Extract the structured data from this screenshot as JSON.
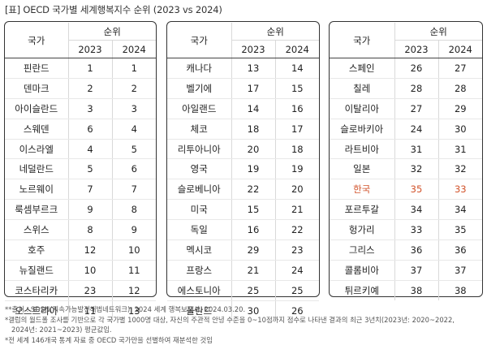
{
  "title": "[표] OECD 국가별 세계행복지수 순위 (2023 vs 2024)",
  "headers": {
    "country": "국가",
    "rank": "순위",
    "year1": "2023",
    "year2": "2024"
  },
  "tables": [
    [
      {
        "country": "핀란드",
        "r2023": "1",
        "r2024": "1"
      },
      {
        "country": "덴마크",
        "r2023": "2",
        "r2024": "2"
      },
      {
        "country": "아이슬란드",
        "r2023": "3",
        "r2024": "3"
      },
      {
        "country": "스웨덴",
        "r2023": "6",
        "r2024": "4"
      },
      {
        "country": "이스라엘",
        "r2023": "4",
        "r2024": "5"
      },
      {
        "country": "네덜란드",
        "r2023": "5",
        "r2024": "6"
      },
      {
        "country": "노르웨이",
        "r2023": "7",
        "r2024": "7"
      },
      {
        "country": "룩셈부르크",
        "r2023": "9",
        "r2024": "8"
      },
      {
        "country": "스위스",
        "r2023": "8",
        "r2024": "9"
      },
      {
        "country": "호주",
        "r2023": "12",
        "r2024": "10"
      },
      {
        "country": "뉴질랜드",
        "r2023": "10",
        "r2024": "11"
      },
      {
        "country": "코스타리카",
        "r2023": "23",
        "r2024": "12"
      },
      {
        "country": "오스트리아",
        "r2023": "11",
        "r2024": "13"
      }
    ],
    [
      {
        "country": "캐나다",
        "r2023": "13",
        "r2024": "14"
      },
      {
        "country": "벨기에",
        "r2023": "17",
        "r2024": "15"
      },
      {
        "country": "아일랜드",
        "r2023": "14",
        "r2024": "16"
      },
      {
        "country": "체코",
        "r2023": "18",
        "r2024": "17"
      },
      {
        "country": "리투아니아",
        "r2023": "20",
        "r2024": "18"
      },
      {
        "country": "영국",
        "r2023": "19",
        "r2024": "19"
      },
      {
        "country": "슬로베니아",
        "r2023": "22",
        "r2024": "20"
      },
      {
        "country": "미국",
        "r2023": "15",
        "r2024": "21"
      },
      {
        "country": "독일",
        "r2023": "16",
        "r2024": "22"
      },
      {
        "country": "멕시코",
        "r2023": "29",
        "r2024": "23"
      },
      {
        "country": "프랑스",
        "r2023": "21",
        "r2024": "24"
      },
      {
        "country": "에스토니아",
        "r2023": "25",
        "r2024": "25"
      },
      {
        "country": "폴란드",
        "r2023": "30",
        "r2024": "26"
      }
    ],
    [
      {
        "country": "스페인",
        "r2023": "26",
        "r2024": "27"
      },
      {
        "country": "칠레",
        "r2023": "28",
        "r2024": "28"
      },
      {
        "country": "이탈리아",
        "r2023": "27",
        "r2024": "29"
      },
      {
        "country": "슬로바키아",
        "r2023": "24",
        "r2024": "30"
      },
      {
        "country": "라트비아",
        "r2023": "31",
        "r2024": "31"
      },
      {
        "country": "일본",
        "r2023": "32",
        "r2024": "32"
      },
      {
        "country": "한국",
        "r2023": "35",
        "r2024": "33",
        "highlight": true
      },
      {
        "country": "포르투갈",
        "r2023": "34",
        "r2024": "34"
      },
      {
        "country": "헝가리",
        "r2023": "33",
        "r2024": "35"
      },
      {
        "country": "그리스",
        "r2023": "36",
        "r2024": "36"
      },
      {
        "country": "콜롬비아",
        "r2023": "37",
        "r2024": "37"
      },
      {
        "country": "튀르키예",
        "r2023": "38",
        "r2024": "38"
      }
    ]
  ],
  "highlight_color": "#d2532b",
  "notes": [
    "**출처 : SDSN(지속가능발전해법네트워크), 2024 세계 행복보고서, 2024.03.20.",
    "*갤럽의 월드폴 조사를 기반으로 각 국가별 1000명 대상, 자신의 주관적 안녕 수준을 0~10점까지 점수로 나타낸 결과의 최근 3년치(2023년: 2020~2022,",
    "  2024년: 2021~2023) 평균값임.",
    "*전 세계 146개국 통계 자료 중 OECD 국가만을 선별하여 재분석한 것임"
  ]
}
